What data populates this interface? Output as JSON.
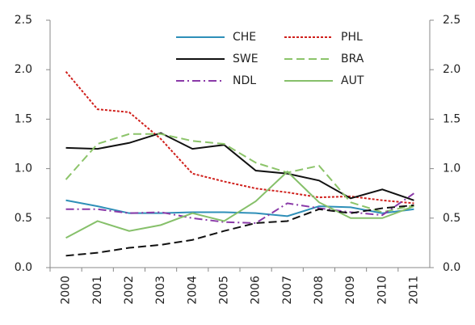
{
  "chart_data": {
    "type": "line",
    "categories": [
      "2000",
      "2001",
      "2002",
      "2003",
      "2004",
      "2005",
      "2006",
      "2007",
      "2008",
      "2009",
      "2010",
      "2011"
    ],
    "series": [
      {
        "name": "CHE",
        "color": "#2e8fb8",
        "dash": "solid",
        "values": [
          0.68,
          0.62,
          0.55,
          0.55,
          0.56,
          0.56,
          0.55,
          0.52,
          0.62,
          0.61,
          0.55,
          0.59
        ]
      },
      {
        "name": "PHL",
        "color": "#d0201c",
        "dash": "dotted",
        "values": [
          1.98,
          1.6,
          1.57,
          1.3,
          0.95,
          0.87,
          0.8,
          0.76,
          0.71,
          0.72,
          0.68,
          0.65
        ]
      },
      {
        "name": "SWE",
        "color": "#111111",
        "dash": "solid",
        "values": [
          1.21,
          1.2,
          1.26,
          1.36,
          1.2,
          1.24,
          0.98,
          0.95,
          0.88,
          0.7,
          0.79,
          0.68
        ]
      },
      {
        "name": "BRA",
        "color": "#8cc46a",
        "dash": "dashed",
        "values": [
          0.89,
          1.25,
          1.35,
          1.35,
          1.28,
          1.25,
          1.06,
          0.96,
          1.03,
          0.66,
          0.56,
          0.63
        ]
      },
      {
        "name": "NDL",
        "color": "#8a3aa8",
        "dash": "dashdot",
        "values": [
          0.59,
          0.59,
          0.55,
          0.56,
          0.5,
          0.46,
          0.45,
          0.65,
          0.6,
          0.56,
          0.53,
          0.75
        ]
      },
      {
        "name": "AUT",
        "color": "#86c06a",
        "dash": "solid",
        "values": [
          0.3,
          0.47,
          0.37,
          0.43,
          0.55,
          0.47,
          0.67,
          0.97,
          0.66,
          0.5,
          0.5,
          0.62
        ]
      },
      {
        "color": "#111111",
        "dash": "dashed",
        "values": [
          0.12,
          0.15,
          0.2,
          0.23,
          0.28,
          0.37,
          0.45,
          0.47,
          0.59,
          0.55,
          0.6,
          0.63
        ]
      }
    ],
    "ylim": [
      0,
      2.5
    ],
    "yticks": [
      {
        "value": 0,
        "label": "0.0"
      },
      0.5,
      {
        "value": 1,
        "label": "1.0"
      },
      1.5,
      {
        "value": 2,
        "label": "2.0"
      },
      2.5
    ],
    "y2lim": [
      0,
      2.5
    ],
    "y2ticks": [
      {
        "value": 0,
        "label": "0.0"
      },
      0.5,
      {
        "value": 1,
        "label": "1.0"
      },
      1.5,
      {
        "value": 2,
        "label": "2.0"
      },
      2.5
    ],
    "grid": false,
    "legend": "top"
  }
}
